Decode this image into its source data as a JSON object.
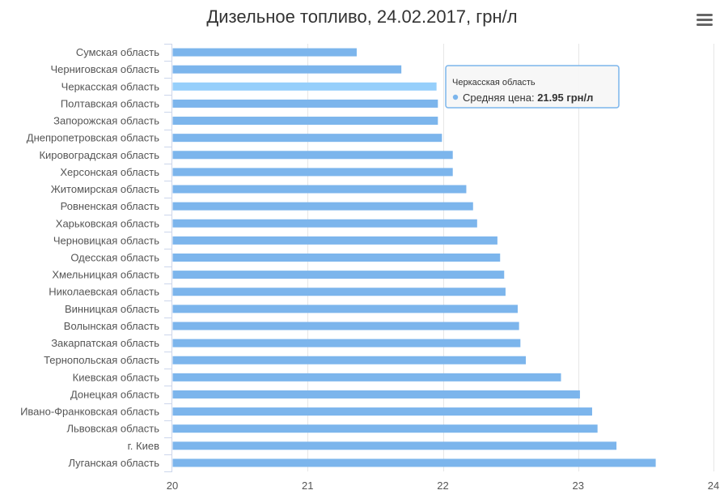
{
  "chart_data": {
    "type": "bar",
    "orientation": "horizontal",
    "title": "Дизельное топливо, 24.02.2017, грн/л",
    "categories": [
      "Сумская область",
      "Черниговская область",
      "Черкасская область",
      "Полтавская область",
      "Запорожская область",
      "Днепропетровская область",
      "Кировоградская область",
      "Херсонская область",
      "Житомирская область",
      "Ровненская область",
      "Харьковская область",
      "Черновицкая область",
      "Одесская область",
      "Хмельницкая область",
      "Николаевская область",
      "Винницкая область",
      "Волынская область",
      "Закарпатская область",
      "Тернопольская область",
      "Киевская область",
      "Донецкая область",
      "Ивано-Франковская область",
      "Львовская область",
      "г. Киев",
      "Луганская область"
    ],
    "series": [
      {
        "values": [
          21.36,
          21.69,
          21.95,
          21.96,
          21.96,
          21.99,
          22.07,
          22.07,
          22.17,
          22.22,
          22.25,
          22.4,
          22.42,
          22.45,
          22.46,
          22.55,
          22.56,
          22.57,
          22.61,
          22.87,
          23.01,
          23.1,
          23.14,
          23.28,
          23.57
        ]
      }
    ],
    "xlim": [
      20,
      24
    ],
    "xticks": [
      "20",
      "21",
      "22",
      "23",
      "24"
    ],
    "grid": true,
    "colors": {
      "bar": "#7cb5ec",
      "bar_highlight": "#96cffb",
      "grid": "#e6e6e6",
      "axis": "#ccd6eb"
    },
    "highlight_index": 2
  },
  "tooltip": {
    "header": "Черкасская область",
    "label": "Средняя цена: ",
    "value": "21.95 грн/л"
  },
  "menu": {
    "icon": "hamburger-menu-icon"
  }
}
